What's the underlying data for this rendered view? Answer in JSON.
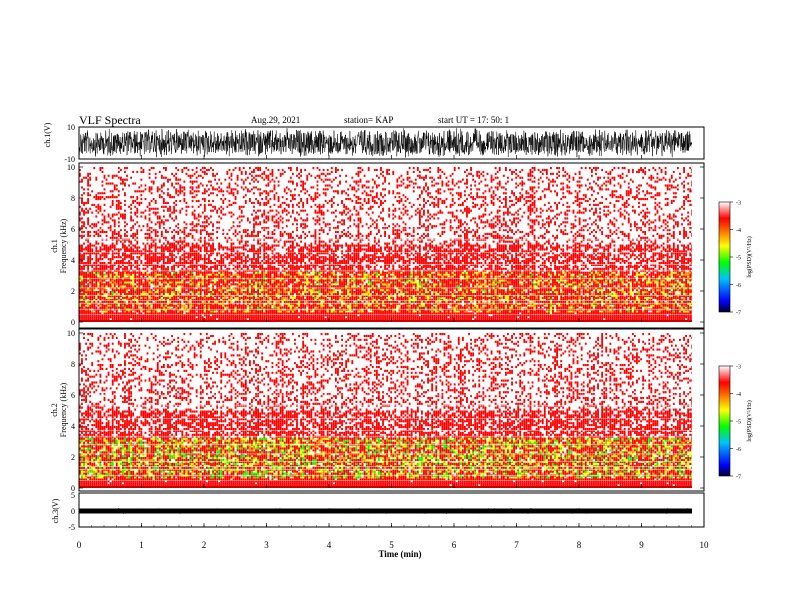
{
  "header": {
    "title": "VLF Spectra",
    "date": "Aug.29, 2021",
    "station": "station= KAP",
    "start": "start  UT  =    17: 50: 1"
  },
  "chart_data": [
    {
      "type": "line",
      "ylabel": "ch.1(V)",
      "yticks": [
        "10",
        "-10"
      ],
      "ylim": [
        -10,
        10
      ],
      "xlim": [
        0,
        10
      ]
    },
    {
      "type": "heatmap",
      "ylabel_line1": "ch.1",
      "ylabel_line2": "Frequency  (kHz)",
      "yticks": [
        "0",
        "2",
        "4",
        "6",
        "8",
        "10"
      ],
      "ylim": [
        0,
        10
      ],
      "xlim": [
        0,
        10
      ],
      "colorbar": {
        "label": "log(PSD)(V²/Hz)",
        "ticks": [
          "-3",
          "-4",
          "-5",
          "-6",
          "-7"
        ],
        "range": [
          -7,
          -3
        ]
      }
    },
    {
      "type": "heatmap",
      "ylabel_line1": "ch.2",
      "ylabel_line2": "Frequency  (kHz)",
      "yticks": [
        "0",
        "2",
        "4",
        "6",
        "8",
        "10"
      ],
      "ylim": [
        0,
        10
      ],
      "xlim": [
        0,
        10
      ],
      "colorbar": {
        "label": "log(PSD)(V²/Hz)",
        "ticks": [
          "-3",
          "-4",
          "-5",
          "-6",
          "-7"
        ],
        "range": [
          -7,
          -3
        ]
      }
    },
    {
      "type": "line",
      "ylabel": "ch.3(V)",
      "yticks": [
        "5",
        "0",
        "-5"
      ],
      "ylim": [
        -5,
        5
      ],
      "xlim": [
        0,
        10
      ]
    }
  ],
  "xaxis": {
    "label": "Time  (min)",
    "ticks": [
      "0",
      "1",
      "2",
      "3",
      "4",
      "5",
      "6",
      "7",
      "8",
      "9",
      "10"
    ],
    "range": [
      0,
      10
    ],
    "data_end": 9.83
  },
  "colors": {
    "heat_low": "#ff0000",
    "heat_mid": "#ffff00",
    "heat_high": "#00ff00",
    "trace": "#000000"
  }
}
